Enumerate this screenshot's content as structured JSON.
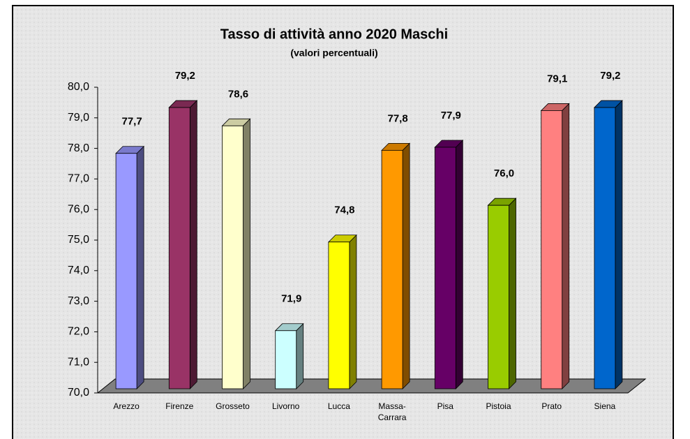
{
  "chart_data": {
    "type": "bar3d",
    "title": "Tasso di attività anno 2020 Maschi",
    "subtitle": "(valori percentuali)",
    "categories": [
      "Arezzo",
      "Firenze",
      "Grosseto",
      "Livorno",
      "Lucca",
      "Massa-Carrara",
      "Pisa",
      "Pistoia",
      "Prato",
      "Siena"
    ],
    "values": [
      77.7,
      79.2,
      78.6,
      71.9,
      74.8,
      77.8,
      77.9,
      76.0,
      79.1,
      79.2
    ],
    "value_labels": [
      "77,7",
      "79,2",
      "78,6",
      "71,9",
      "74,8",
      "77,8",
      "77,9",
      "76,0",
      "79,1",
      "79,2"
    ],
    "colors": [
      "#9999ff",
      "#993366",
      "#ffffcc",
      "#ccffff",
      "#ffff00",
      "#ff9900",
      "#660066",
      "#99cc00",
      "#ff8080",
      "#0066cc"
    ],
    "ylim": [
      70,
      80
    ],
    "yticks": [
      {
        "value": 70,
        "label": "70,0"
      },
      {
        "value": 71,
        "label": "71,0"
      },
      {
        "value": 72,
        "label": "72,0"
      },
      {
        "value": 73,
        "label": "73,0"
      },
      {
        "value": 74,
        "label": "74,0"
      },
      {
        "value": 75,
        "label": "75,0"
      },
      {
        "value": 76,
        "label": "76,0"
      },
      {
        "value": 77,
        "label": "77,0"
      },
      {
        "value": 78,
        "label": "78,0"
      },
      {
        "value": 79,
        "label": "79,0"
      },
      {
        "value": 80,
        "label": "80,0"
      }
    ]
  }
}
